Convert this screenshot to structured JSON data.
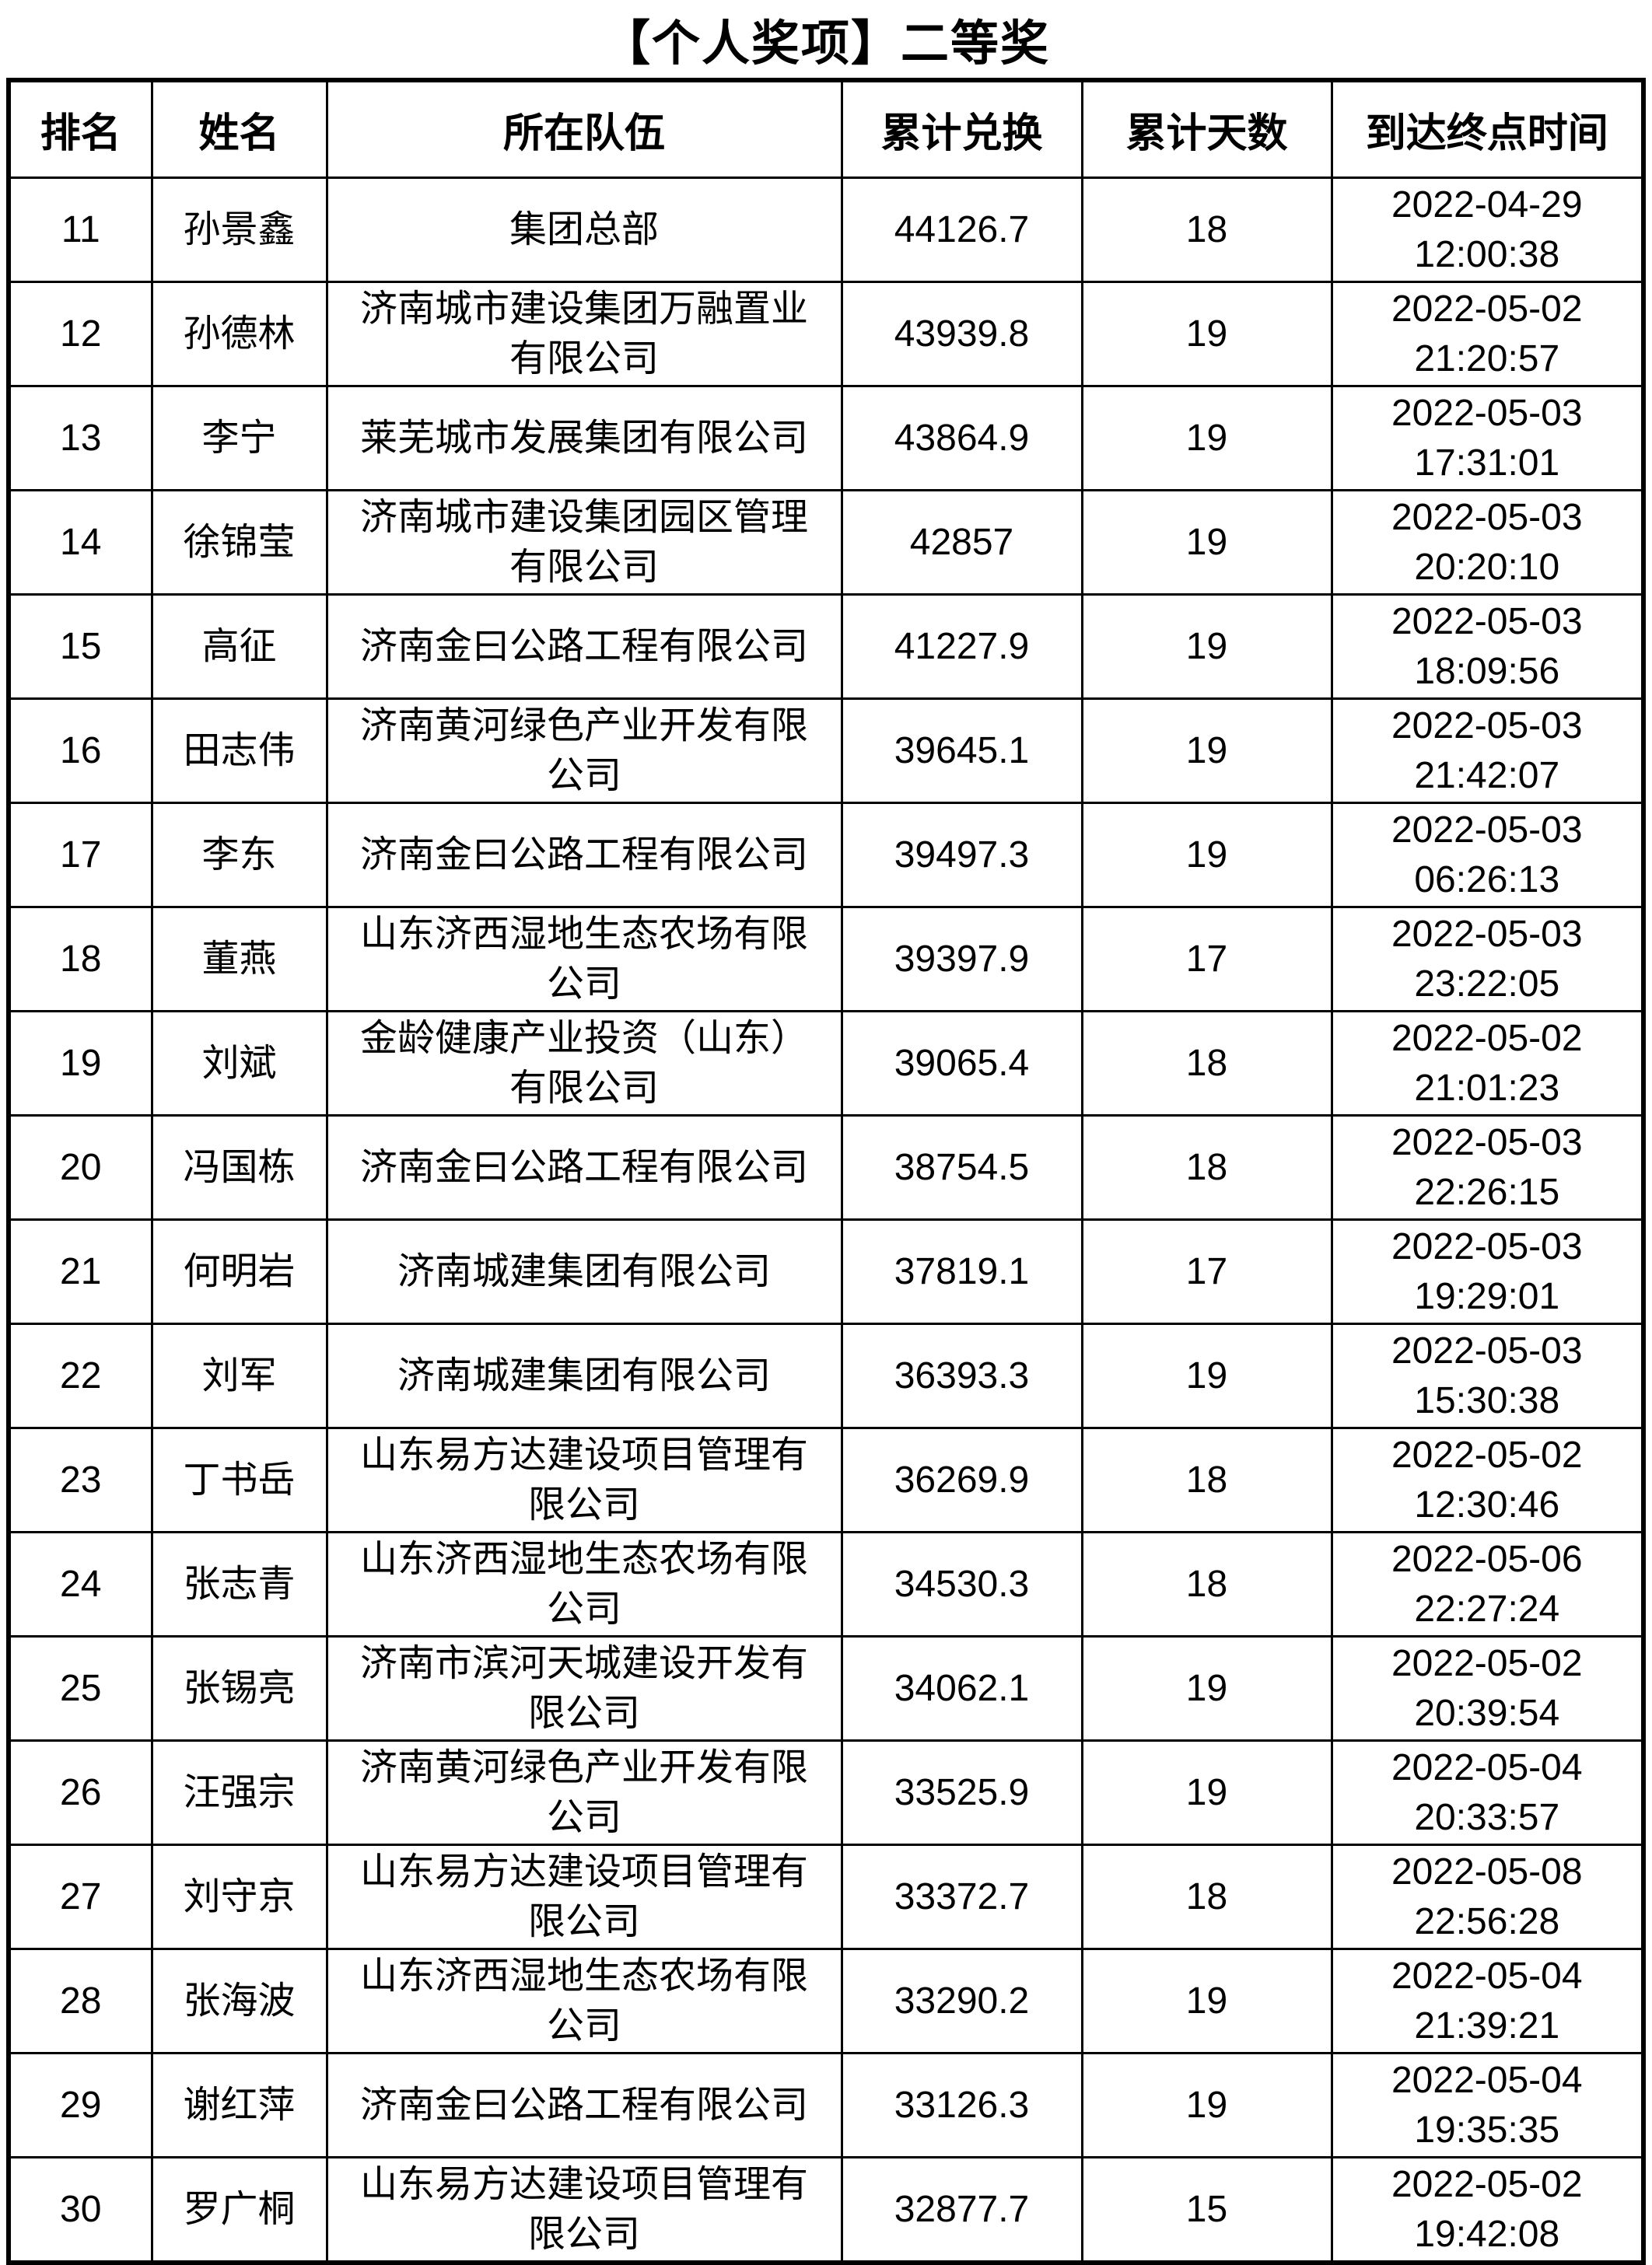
{
  "title": "【个人奖项】二等奖",
  "table": {
    "headers": [
      "排名",
      "姓名",
      "所在队伍",
      "累计兑换",
      "累计天数",
      "到达终点时间"
    ],
    "rows": [
      {
        "rank": "11",
        "name": "孙景鑫",
        "team": "集团总部",
        "points": "44126.7",
        "days": "18",
        "date": "2022-04-29",
        "time": "12:00:38"
      },
      {
        "rank": "12",
        "name": "孙德林",
        "team": "济南城市建设集团万融置业有限公司",
        "points": "43939.8",
        "days": "19",
        "date": "2022-05-02",
        "time": "21:20:57"
      },
      {
        "rank": "13",
        "name": "李宁",
        "team": "莱芜城市发展集团有限公司",
        "points": "43864.9",
        "days": "19",
        "date": "2022-05-03",
        "time": "17:31:01"
      },
      {
        "rank": "14",
        "name": "徐锦莹",
        "team": "济南城市建设集团园区管理有限公司",
        "points": "42857",
        "days": "19",
        "date": "2022-05-03",
        "time": "20:20:10"
      },
      {
        "rank": "15",
        "name": "高征",
        "team": "济南金曰公路工程有限公司",
        "points": "41227.9",
        "days": "19",
        "date": "2022-05-03",
        "time": "18:09:56"
      },
      {
        "rank": "16",
        "name": "田志伟",
        "team": "济南黄河绿色产业开发有限公司",
        "points": "39645.1",
        "days": "19",
        "date": "2022-05-03",
        "time": "21:42:07"
      },
      {
        "rank": "17",
        "name": "李东",
        "team": "济南金曰公路工程有限公司",
        "points": "39497.3",
        "days": "19",
        "date": "2022-05-03",
        "time": "06:26:13"
      },
      {
        "rank": "18",
        "name": "董燕",
        "team": "山东济西湿地生态农场有限公司",
        "points": "39397.9",
        "days": "17",
        "date": "2022-05-03",
        "time": "23:22:05"
      },
      {
        "rank": "19",
        "name": "刘斌",
        "team": "金龄健康产业投资（山东）有限公司",
        "points": "39065.4",
        "days": "18",
        "date": "2022-05-02",
        "time": "21:01:23"
      },
      {
        "rank": "20",
        "name": "冯国栋",
        "team": "济南金曰公路工程有限公司",
        "points": "38754.5",
        "days": "18",
        "date": "2022-05-03",
        "time": "22:26:15"
      },
      {
        "rank": "21",
        "name": "何明岩",
        "team": "济南城建集团有限公司",
        "points": "37819.1",
        "days": "17",
        "date": "2022-05-03",
        "time": "19:29:01"
      },
      {
        "rank": "22",
        "name": "刘军",
        "team": "济南城建集团有限公司",
        "points": "36393.3",
        "days": "19",
        "date": "2022-05-03",
        "time": "15:30:38"
      },
      {
        "rank": "23",
        "name": "丁书岳",
        "team": "山东易方达建设项目管理有限公司",
        "points": "36269.9",
        "days": "18",
        "date": "2022-05-02",
        "time": "12:30:46"
      },
      {
        "rank": "24",
        "name": "张志青",
        "team": "山东济西湿地生态农场有限公司",
        "points": "34530.3",
        "days": "18",
        "date": "2022-05-06",
        "time": "22:27:24"
      },
      {
        "rank": "25",
        "name": "张锡亮",
        "team": "济南市滨河天城建设开发有限公司",
        "points": "34062.1",
        "days": "19",
        "date": "2022-05-02",
        "time": "20:39:54"
      },
      {
        "rank": "26",
        "name": "汪强宗",
        "team": "济南黄河绿色产业开发有限公司",
        "points": "33525.9",
        "days": "19",
        "date": "2022-05-04",
        "time": "20:33:57"
      },
      {
        "rank": "27",
        "name": "刘守京",
        "team": "山东易方达建设项目管理有限公司",
        "points": "33372.7",
        "days": "18",
        "date": "2022-05-08",
        "time": "22:56:28"
      },
      {
        "rank": "28",
        "name": "张海波",
        "team": "山东济西湿地生态农场有限公司",
        "points": "33290.2",
        "days": "19",
        "date": "2022-05-04",
        "time": "21:39:21"
      },
      {
        "rank": "29",
        "name": "谢红萍",
        "team": "济南金曰公路工程有限公司",
        "points": "33126.3",
        "days": "19",
        "date": "2022-05-04",
        "time": "19:35:35"
      },
      {
        "rank": "30",
        "name": "罗广桐",
        "team": "山东易方达建设项目管理有限公司",
        "points": "32877.7",
        "days": "15",
        "date": "2022-05-02",
        "time": "19:42:08"
      }
    ]
  }
}
